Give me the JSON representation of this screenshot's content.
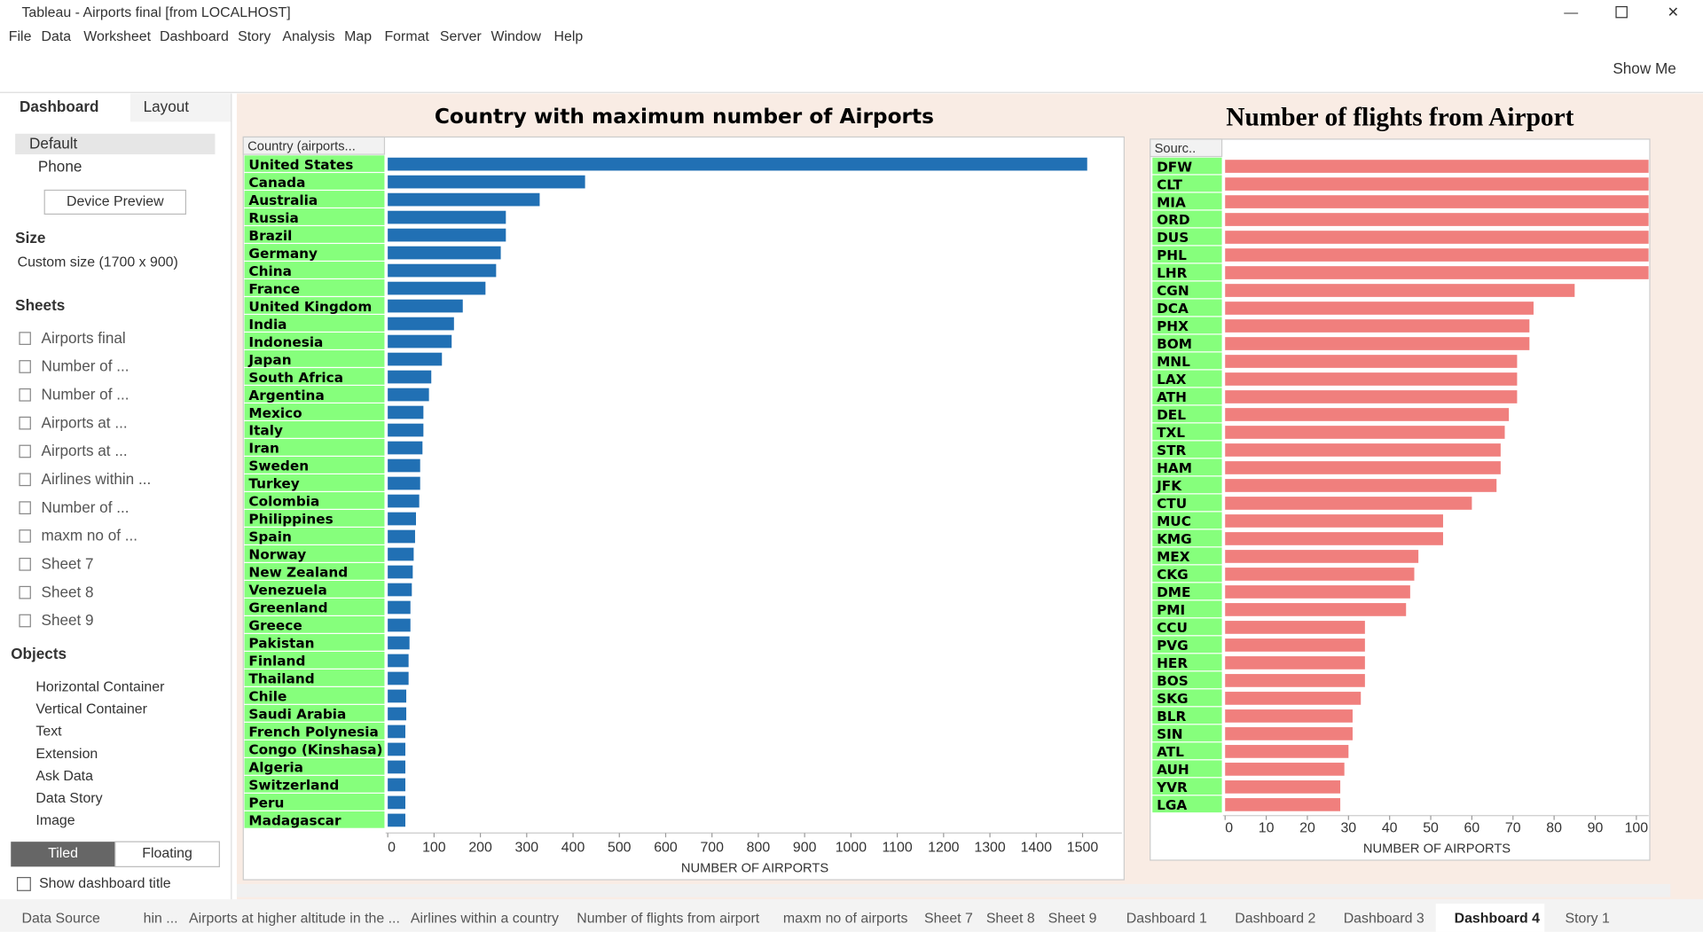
{
  "window": {
    "title": "Tableau - Airports final [from LOCALHOST]"
  },
  "menu": [
    "File",
    "Data",
    "Worksheet",
    "Dashboard",
    "Story",
    "Analysis",
    "Map",
    "Format",
    "Server",
    "Window",
    "Help"
  ],
  "toolbar": {
    "show_me": "Show Me"
  },
  "side_panel": {
    "tabs": [
      "Dashboard",
      "Layout"
    ],
    "devices": [
      "Default",
      "Phone"
    ],
    "device_preview": "Device Preview",
    "size_heading": "Size",
    "size_value": "Custom size (1700 x 900)",
    "sheets_heading": "Sheets",
    "sheets": [
      "Airports final",
      "Number of ...",
      "Number of ...",
      "Airports at ...",
      "Airports at ...",
      "Airlines within ...",
      "Number of ...",
      "maxm no of ...",
      "Sheet 7",
      "Sheet 8",
      "Sheet 9"
    ],
    "objects_heading": "Objects",
    "objects": [
      "Horizontal Container",
      "Vertical Container",
      "Text",
      "Extension",
      "Ask Data",
      "Data Story",
      "Image"
    ],
    "layout_modes": [
      "Tiled",
      "Floating"
    ],
    "show_title": "Show dashboard title"
  },
  "chart_data": [
    {
      "type": "bar",
      "orientation": "horizontal",
      "title": "Country with maximum number of Airports",
      "header": "Country (airports...",
      "x_label": "NUMBER OF AIRPORTS",
      "color": "#2170b4",
      "label_color": "#86ff7c",
      "categories": [
        "United States",
        "Canada",
        "Australia",
        "Russia",
        "Brazil",
        "Germany",
        "China",
        "France",
        "United Kingdom",
        "India",
        "Indonesia",
        "Japan",
        "South Africa",
        "Argentina",
        "Mexico",
        "Italy",
        "Iran",
        "Sweden",
        "Turkey",
        "Colombia",
        "Philippines",
        "Spain",
        "Norway",
        "New Zealand",
        "Venezuela",
        "Greenland",
        "Greece",
        "Pakistan",
        "Finland",
        "Thailand",
        "Chile",
        "Saudi Arabia",
        "French Polynesia",
        "Congo (Kinshasa)",
        "Algeria",
        "Switzerland",
        "Peru",
        "Madagascar"
      ],
      "values": [
        1510,
        426,
        328,
        255,
        255,
        244,
        234,
        211,
        162,
        143,
        138,
        117,
        94,
        89,
        77,
        77,
        75,
        70,
        70,
        68,
        61,
        59,
        56,
        54,
        52,
        49,
        49,
        47,
        45,
        45,
        40,
        40,
        38,
        38,
        38,
        38,
        38,
        38
      ],
      "xlim": [
        0,
        1585
      ],
      "xticks": [
        0,
        100,
        200,
        300,
        400,
        500,
        600,
        700,
        800,
        900,
        1000,
        1100,
        1200,
        1300,
        1400,
        1500
      ]
    },
    {
      "type": "bar",
      "orientation": "horizontal",
      "title": "Number of flights from Airport",
      "header": "Sourc..",
      "x_label": "NUMBER OF AIRPORTS",
      "color": "#f07f7d",
      "label_color": "#86ff7c",
      "categories": [
        "DFW",
        "CLT",
        "MIA",
        "ORD",
        "DUS",
        "PHL",
        "LHR",
        "CGN",
        "DCA",
        "PHX",
        "BOM",
        "MNL",
        "LAX",
        "ATH",
        "DEL",
        "TXL",
        "STR",
        "HAM",
        "JFK",
        "CTU",
        "MUC",
        "KMG",
        "MEX",
        "CKG",
        "DME",
        "PMI",
        "CCU",
        "PVG",
        "HER",
        "BOS",
        "SKG",
        "BLR",
        "SIN",
        "ATL",
        "AUH",
        "YVR",
        "LGA"
      ],
      "values": [
        103,
        103,
        103,
        103,
        103,
        103,
        103,
        85,
        75,
        74,
        74,
        71,
        71,
        71,
        69,
        68,
        67,
        67,
        66,
        60,
        53,
        53,
        47,
        46,
        45,
        44,
        34,
        34,
        34,
        34,
        33,
        31,
        31,
        30,
        29,
        28,
        28
      ],
      "xlim": [
        0,
        103
      ],
      "xticks": [
        0,
        10,
        20,
        30,
        40,
        50,
        60,
        70,
        80,
        90,
        100
      ]
    }
  ],
  "bottom_tabs": [
    "Data Source",
    "hin ...",
    "Airports at higher altitude in the ...",
    "Airlines within a country",
    "Number of flights from airport",
    "maxm no of airports",
    "Sheet 7",
    "Sheet 8",
    "Sheet 9",
    "Dashboard 1",
    "Dashboard 2",
    "Dashboard 3",
    "Dashboard 4",
    "Story 1"
  ]
}
